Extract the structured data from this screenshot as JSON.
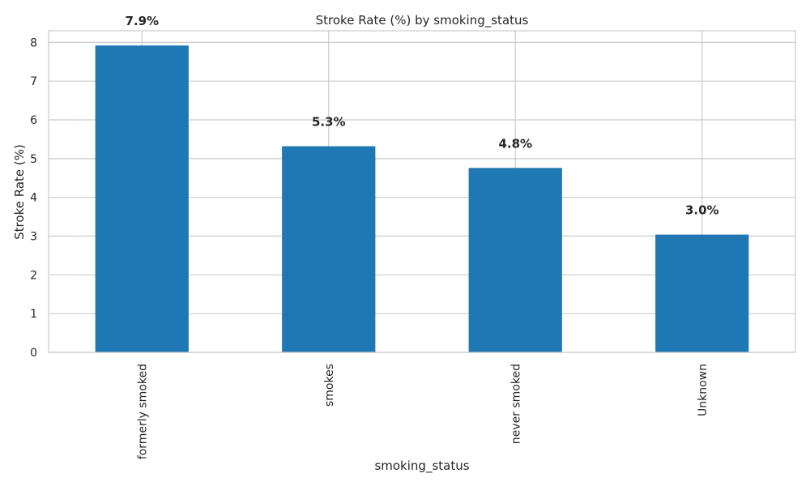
{
  "chart_data": {
    "type": "bar",
    "title": "Stroke Rate (%) by smoking_status",
    "xlabel": "smoking_status",
    "ylabel": "Stroke Rate (%)",
    "categories": [
      "formerly smoked",
      "smokes",
      "never smoked",
      "Unknown"
    ],
    "values": [
      7.92,
      5.32,
      4.76,
      3.04
    ],
    "data_labels": [
      "7.9%",
      "5.3%",
      "4.8%",
      "3.0%"
    ],
    "ylim": [
      0,
      8.3
    ],
    "yticks": [
      "0",
      "1",
      "2",
      "3",
      "4",
      "5",
      "6",
      "7",
      "8"
    ],
    "grid": true,
    "bar_color": "#1f77b4",
    "legend": "none"
  }
}
